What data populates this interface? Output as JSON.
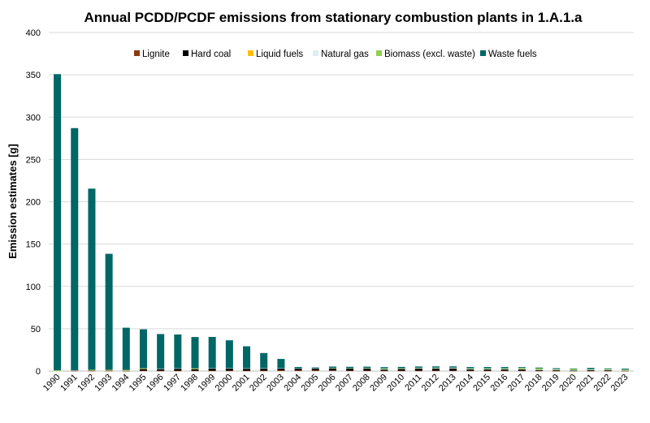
{
  "chart_data": {
    "type": "bar",
    "stacked": true,
    "title": "Annual PCDD/PCDF emissions from stationary combustion plants in 1.A.1.a",
    "xlabel": "",
    "ylabel": "Emission estimates [g]",
    "ylim": [
      0,
      400
    ],
    "yticks": [
      0,
      50,
      100,
      150,
      200,
      250,
      300,
      350,
      400
    ],
    "grid": true,
    "legend_position": "top",
    "categories": [
      "1990",
      "1991",
      "1992",
      "1993",
      "1994",
      "1995",
      "1996",
      "1997",
      "1998",
      "1999",
      "2000",
      "2001",
      "2002",
      "2003",
      "2004",
      "2005",
      "2006",
      "2007",
      "2008",
      "2009",
      "2010",
      "2011",
      "2012",
      "2013",
      "2014",
      "2015",
      "2016",
      "2017",
      "2018",
      "2019",
      "2020",
      "2021",
      "2022",
      "2023"
    ],
    "series": [
      {
        "name": "Lignite",
        "color": "#8B3A0F",
        "values": [
          0,
          0.3,
          0.3,
          0.3,
          0.2,
          0.5,
          0.4,
          0.4,
          0.4,
          0.5,
          0.5,
          0.4,
          0.5,
          1,
          1,
          1,
          0.8,
          0.5,
          0.5,
          0.3,
          0.4,
          0.4,
          0.5,
          0.5,
          0.4,
          0.4,
          0.4,
          0.4,
          0.3,
          0.2,
          0.2,
          0.2,
          0.2,
          0.2
        ]
      },
      {
        "name": "Hard coal",
        "color": "#000000",
        "values": [
          0,
          0.5,
          0.5,
          0.5,
          0.3,
          2,
          2,
          2.5,
          2,
          2.5,
          2.5,
          2.5,
          2.5,
          2,
          2,
          2,
          2.5,
          2.5,
          2.5,
          1.5,
          2,
          2.5,
          2.5,
          2.5,
          1.5,
          1.5,
          1.5,
          1.5,
          1,
          0.8,
          0.3,
          1,
          0.8,
          0.3
        ]
      },
      {
        "name": "Liquid fuels",
        "color": "#FFC000",
        "values": [
          0.3,
          0,
          0.2,
          0.2,
          0.2,
          0.3,
          0,
          0,
          0.3,
          0,
          0,
          0,
          0,
          0,
          0,
          0,
          0,
          0,
          0,
          0,
          0,
          0,
          0,
          0,
          0,
          0,
          0,
          0,
          0,
          0,
          0,
          0,
          0,
          0
        ]
      },
      {
        "name": "Natural gas",
        "color": "#DAEEF3",
        "values": [
          0.2,
          0.2,
          0.2,
          0.2,
          0.2,
          0.3,
          0.3,
          0.3,
          0.3,
          0.3,
          0.3,
          0.3,
          0.3,
          0.3,
          0.3,
          0.3,
          0.3,
          0.3,
          0.4,
          0.5,
          0.5,
          0.5,
          0.5,
          0.5,
          0.5,
          0.5,
          0.5,
          0.5,
          0.5,
          0.5,
          0.5,
          0.5,
          0.5,
          0.3
        ]
      },
      {
        "name": "Biomass (excl. waste)",
        "color": "#92D050",
        "values": [
          0.3,
          0,
          0.3,
          0.3,
          0.3,
          0.2,
          0,
          0,
          0.2,
          0,
          0,
          0,
          0,
          0,
          0,
          0,
          0.2,
          0.2,
          0.3,
          0.8,
          0.5,
          0.5,
          0.5,
          0.5,
          0.8,
          0.8,
          0.8,
          1.2,
          1.5,
          0.8,
          1.5,
          0.5,
          0.8,
          1
        ]
      },
      {
        "name": "Waste fuels",
        "color": "#006666",
        "values": [
          350,
          286,
          214,
          137,
          50,
          46,
          41,
          40,
          37,
          37,
          33,
          26,
          18,
          11,
          1.5,
          1,
          1.5,
          1.5,
          1.5,
          1.5,
          1.5,
          1.5,
          1.5,
          1.5,
          1.5,
          1.5,
          1.5,
          1,
          0.8,
          1,
          0.5,
          1.5,
          0.8,
          1
        ]
      }
    ]
  }
}
